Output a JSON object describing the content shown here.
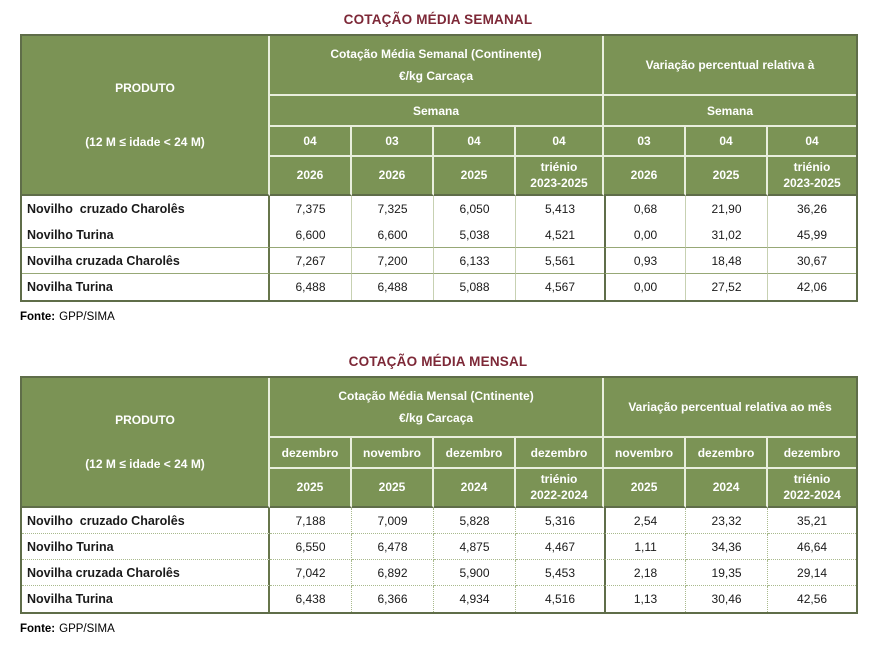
{
  "colors": {
    "header_green": "#7b9355",
    "title_maroon": "#7d2837",
    "outer_border": "#5f6d49"
  },
  "weekly": {
    "title": "COTAÇÃO MÉDIA SEMANAL",
    "product_header_line1": "PRODUTO",
    "product_header_line2": "(12 M ≤ idade < 24 M)",
    "group1_line1": "Cotação Média Semanal (Continente)",
    "group1_line2": "€/kg Carcaça",
    "group2": "Variação percentual relativa  à",
    "sub1": "Semana",
    "sub2": "Semana",
    "periods": [
      "04",
      "03",
      "04",
      "04",
      "03",
      "04",
      "04"
    ],
    "years": [
      "2026",
      "2026",
      "2025",
      "triénio\n2023-2025",
      "2026",
      "2025",
      "triénio\n2023-2025"
    ],
    "rows": [
      {
        "product": "Novilho  cruzado Charolês",
        "values": [
          "7,375",
          "7,325",
          "6,050",
          "5,413",
          "0,68",
          "21,90",
          "36,26"
        ]
      },
      {
        "product": "Novilho Turina",
        "values": [
          "6,600",
          "6,600",
          "5,038",
          "4,521",
          "0,00",
          "31,02",
          "45,99"
        ]
      },
      {
        "product": "Novilha cruzada Charolês",
        "values": [
          "7,267",
          "7,200",
          "6,133",
          "5,561",
          "0,93",
          "18,48",
          "30,67"
        ]
      },
      {
        "product": "Novilha Turina",
        "values": [
          "6,488",
          "6,488",
          "5,088",
          "4,567",
          "0,00",
          "27,52",
          "42,06"
        ]
      }
    ],
    "source_label": "Fonte:",
    "source_value": "GPP/SIMA"
  },
  "monthly": {
    "title": "COTAÇÃO MÉDIA MENSAL",
    "product_header_line1": "PRODUTO",
    "product_header_line2": "(12 M ≤ idade < 24 M)",
    "group1_line1": "Cotação Média Mensal (Cntinente)",
    "group1_line2": "€/kg Carcaça",
    "group2": "Variação percentual relativa  ao mês",
    "months": [
      "dezembro",
      "novembro",
      "dezembro",
      "dezembro",
      "novembro",
      "dezembro",
      "dezembro"
    ],
    "years": [
      "2025",
      "2025",
      "2024",
      "triénio\n2022-2024",
      "2025",
      "2024",
      "triénio\n2022-2024"
    ],
    "rows": [
      {
        "product": "Novilho  cruzado Charolês",
        "values": [
          "7,188",
          "7,009",
          "5,828",
          "5,316",
          "2,54",
          "23,32",
          "35,21"
        ]
      },
      {
        "product": "Novilho Turina",
        "values": [
          "6,550",
          "6,478",
          "4,875",
          "4,467",
          "1,11",
          "34,36",
          "46,64"
        ]
      },
      {
        "product": "Novilha cruzada Charolês",
        "values": [
          "7,042",
          "6,892",
          "5,900",
          "5,453",
          "2,18",
          "19,35",
          "29,14"
        ]
      },
      {
        "product": "Novilha Turina",
        "values": [
          "6,438",
          "6,366",
          "4,934",
          "4,516",
          "1,13",
          "30,46",
          "42,56"
        ]
      }
    ],
    "source_label": "Fonte:",
    "source_value": "GPP/SIMA"
  }
}
